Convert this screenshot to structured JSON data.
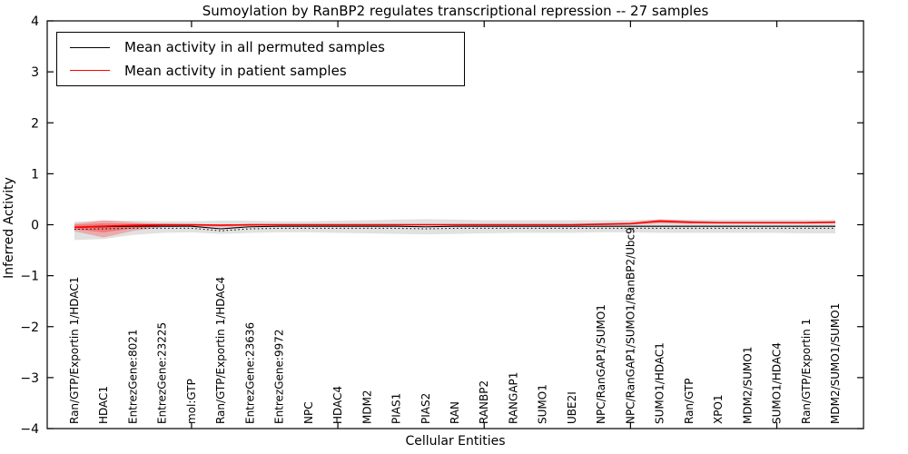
{
  "chart_data": {
    "type": "line",
    "title": "Sumoylation by RanBP2 regulates transcriptional repression -- 27 samples",
    "xlabel": "Cellular Entities",
    "ylabel": "Inferred Activity",
    "ylim": [
      -4,
      4
    ],
    "yticks": [
      4,
      3,
      2,
      1,
      0,
      -1,
      -2,
      -3,
      -4
    ],
    "ytick_labels": [
      "4",
      "3",
      "2",
      "1",
      "0",
      "−1",
      "−2",
      "−3",
      "−4"
    ],
    "x_major_tick_indices": [
      4,
      9,
      14,
      19,
      24
    ],
    "grid": false,
    "legend_position": "upper left",
    "categories": [
      "Ran/GTP/Exportin 1/HDAC1",
      "HDAC1",
      "EntrezGene:8021",
      "EntrezGene:23225",
      "mol:GTP",
      "Ran/GTP/Exportin 1/HDAC4",
      "EntrezGene:23636",
      "EntrezGene:9972",
      "NPC",
      "HDAC4",
      "MDM2",
      "PIAS1",
      "PIAS2",
      "RAN",
      "RANBP2",
      "RANGAP1",
      "SUMO1",
      "UBE2I",
      "NPC/RanGAP1/SUMO1",
      "NPC/RanGAP1/SUMO1/RanBP2/Ubc9",
      "SUMO1/HDAC1",
      "Ran/GTP",
      "XPO1",
      "MDM2/SUMO1",
      "SUMO1/HDAC4",
      "Ran/GTP/Exportin 1",
      "MDM2/SUMO1/SUMO1"
    ],
    "series": [
      {
        "name": "Mean activity in all permuted samples",
        "color": "#000000",
        "style": "solid",
        "width": 1.1,
        "values": [
          -0.05,
          -0.04,
          -0.03,
          -0.03,
          -0.03,
          -0.08,
          -0.04,
          -0.03,
          -0.03,
          -0.03,
          -0.03,
          -0.03,
          -0.04,
          -0.03,
          -0.03,
          -0.03,
          -0.03,
          -0.03,
          -0.03,
          -0.03,
          -0.03,
          -0.03,
          -0.03,
          -0.03,
          -0.03,
          -0.03,
          -0.03
        ]
      },
      {
        "name": "Mean activity in patient samples",
        "color": "#ff0000",
        "style": "solid",
        "width": 1.6,
        "values": [
          -0.05,
          -0.03,
          -0.01,
          0.0,
          0.0,
          -0.01,
          0.0,
          0.0,
          0.0,
          0.0,
          0.0,
          0.0,
          0.0,
          0.0,
          0.0,
          0.0,
          0.0,
          0.0,
          0.01,
          0.02,
          0.07,
          0.05,
          0.04,
          0.04,
          0.04,
          0.04,
          0.05
        ]
      },
      {
        "name": "permuted mean dotted guide",
        "color": "#000000",
        "style": "dotted",
        "width": 1.0,
        "values": [
          -0.09,
          -0.08,
          -0.07,
          -0.07,
          -0.07,
          -0.12,
          -0.08,
          -0.07,
          -0.07,
          -0.07,
          -0.07,
          -0.07,
          -0.08,
          -0.07,
          -0.07,
          -0.07,
          -0.07,
          -0.07,
          -0.07,
          -0.07,
          -0.07,
          -0.07,
          -0.07,
          -0.07,
          -0.07,
          -0.07,
          -0.07
        ]
      }
    ],
    "bands": [
      {
        "name": "permuted samples range",
        "color": "#bdbdbd",
        "opacity": 0.45,
        "upper": [
          0.06,
          0.08,
          0.08,
          0.07,
          0.07,
          0.08,
          0.08,
          0.07,
          0.07,
          0.08,
          0.09,
          0.1,
          0.11,
          0.1,
          0.09,
          0.09,
          0.09,
          0.09,
          0.09,
          0.09,
          0.1,
          0.1,
          0.1,
          0.1,
          0.1,
          0.1,
          0.1
        ],
        "lower": [
          -0.3,
          -0.28,
          -0.2,
          -0.16,
          -0.15,
          -0.18,
          -0.16,
          -0.15,
          -0.15,
          -0.16,
          -0.17,
          -0.18,
          -0.19,
          -0.18,
          -0.17,
          -0.16,
          -0.16,
          -0.16,
          -0.15,
          -0.15,
          -0.16,
          -0.16,
          -0.16,
          -0.16,
          -0.16,
          -0.17,
          -0.17
        ]
      },
      {
        "name": "patient samples range",
        "color": "#ff2222",
        "opacity": 0.28,
        "upper": [
          0.02,
          0.09,
          0.05,
          0.02,
          0.01,
          0.01,
          0.01,
          0.01,
          0.01,
          0.01,
          0.01,
          0.01,
          0.01,
          0.01,
          0.01,
          0.01,
          0.01,
          0.01,
          0.03,
          0.05,
          0.11,
          0.08,
          0.06,
          0.06,
          0.06,
          0.06,
          0.07
        ],
        "lower": [
          -0.13,
          -0.25,
          -0.12,
          -0.05,
          -0.03,
          -0.04,
          -0.03,
          -0.02,
          -0.02,
          -0.02,
          -0.02,
          -0.01,
          -0.01,
          -0.01,
          -0.01,
          -0.01,
          -0.01,
          -0.01,
          -0.01,
          0.0,
          0.03,
          0.02,
          0.02,
          0.02,
          0.02,
          0.02,
          0.03
        ]
      },
      {
        "name": "patient samples range core",
        "color": "#ff2222",
        "opacity": 0.35,
        "upper": [
          0.0,
          0.03,
          0.02,
          0.01,
          0.01,
          0.0,
          0.01,
          0.01,
          0.01,
          0.01,
          0.01,
          0.01,
          0.01,
          0.01,
          0.01,
          0.01,
          0.01,
          0.01,
          0.02,
          0.03,
          0.09,
          0.06,
          0.05,
          0.05,
          0.05,
          0.05,
          0.06
        ],
        "lower": [
          -0.09,
          -0.15,
          -0.07,
          -0.03,
          -0.02,
          -0.02,
          -0.02,
          -0.01,
          -0.01,
          -0.01,
          -0.01,
          -0.01,
          -0.01,
          -0.01,
          -0.01,
          -0.01,
          -0.01,
          -0.01,
          0.0,
          0.01,
          0.05,
          0.03,
          0.03,
          0.03,
          0.03,
          0.03,
          0.04
        ]
      }
    ],
    "legend": {
      "items": [
        {
          "label": "Mean activity in all permuted samples",
          "color": "#000000"
        },
        {
          "label": "Mean activity in patient samples",
          "color": "#ff0000"
        }
      ]
    }
  }
}
